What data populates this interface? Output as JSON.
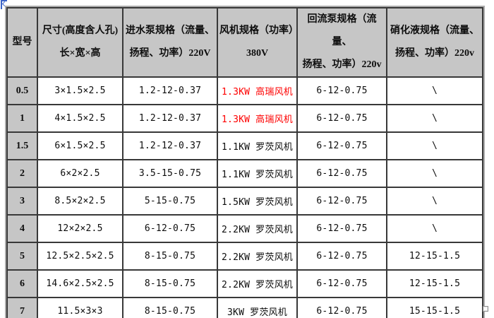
{
  "colors": {
    "accent_red": "#fe0000",
    "header_bg": "#c6c6c6",
    "grid_border": "#383838",
    "anchor_blue": "#3c64c8"
  },
  "table": {
    "headers": [
      {
        "line1": "型号",
        "line2": ""
      },
      {
        "line1": "尺寸(高度含人孔)",
        "line2": "长×宽×高"
      },
      {
        "line1": "进水泵规格（流量、",
        "line2": "扬程、功率）220V"
      },
      {
        "line1": "风机规格（功率）",
        "line2": "380V"
      },
      {
        "line1": "回流泵规格（流量、",
        "line2": "扬程、功率）220v"
      },
      {
        "line1": "硝化液规格（流量、",
        "line2": "扬程、功率）220v"
      }
    ],
    "rows": [
      {
        "model": "0.5",
        "size": "3×1.5×2.5",
        "inlet_pump": "1.2-12-0.37",
        "fan": "1.3KW 高瑞风机",
        "fan_color": "#fe0000",
        "return_pump": "6-12-0.75",
        "nitrified_liquid": "\\"
      },
      {
        "model": "1",
        "size": "4×1.5×2.5",
        "inlet_pump": "1.2-12-0.37",
        "fan": "1.3KW 高瑞风机",
        "fan_color": "#fe0000",
        "return_pump": "6-12-0.75",
        "nitrified_liquid": "\\"
      },
      {
        "model": "1.5",
        "size": "6×1.5×2.5",
        "inlet_pump": "1.2-12-0.37",
        "fan": "1.1KW 罗茨风机",
        "fan_color": "",
        "return_pump": "6-12-0.75",
        "nitrified_liquid": "\\"
      },
      {
        "model": "2",
        "size": "6×2×2.5",
        "inlet_pump": "3.5-15-0.75",
        "fan": "1.1KW 罗茨风机",
        "fan_color": "",
        "return_pump": "6-12-0.75",
        "nitrified_liquid": "\\"
      },
      {
        "model": "3",
        "size": "8.5×2×2.5",
        "inlet_pump": "5-15-0.75",
        "fan": "1.5KW 罗茨风机",
        "fan_color": "",
        "return_pump": "6-12-0.75",
        "nitrified_liquid": "\\"
      },
      {
        "model": "4",
        "size": "12×2×2.5",
        "inlet_pump": "6-12-0.75",
        "fan": "2.2KW 罗茨风机",
        "fan_color": "",
        "return_pump": "6-12-0.75",
        "nitrified_liquid": "\\"
      },
      {
        "model": "5",
        "size": "12.5×2.5×2.5",
        "inlet_pump": "8-15-0.75",
        "fan": "2.2KW 罗茨风机",
        "fan_color": "",
        "return_pump": "6-12-0.75",
        "nitrified_liquid": "12-15-1.5"
      },
      {
        "model": "6",
        "size": "14.6×2.5×2.5",
        "inlet_pump": "8-15-0.75",
        "fan": "2.2KW 罗茨风机",
        "fan_color": "",
        "return_pump": "6-12-0.75",
        "nitrified_liquid": "12-15-1.5"
      },
      {
        "model": "7",
        "size": "11.5×3×3",
        "inlet_pump": "8-15-0.75",
        "fan": "3KW 罗茨风机",
        "fan_color": "",
        "return_pump": "6-12-0.75",
        "nitrified_liquid": "15-15-1.5"
      }
    ]
  }
}
